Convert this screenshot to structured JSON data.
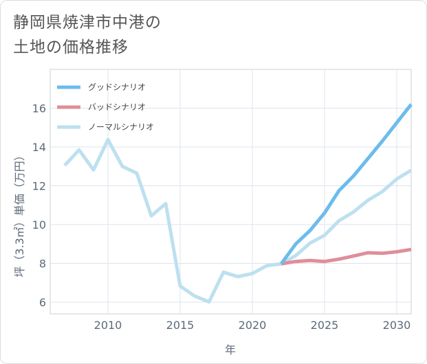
{
  "title_lines": [
    "静岡県焼津市中港の",
    "土地の価格推移"
  ],
  "chart_data": {
    "type": "line",
    "title": "静岡県焼津市中港の土地の価格推移",
    "xlabel": "年",
    "ylabel": "坪（3.3㎡）単価（万円）",
    "xlim": [
      2006,
      2031
    ],
    "ylim": [
      5.4,
      18
    ],
    "xticks": [
      2010,
      2015,
      2020,
      2025,
      2030
    ],
    "yticks": [
      6,
      8,
      10,
      12,
      14,
      16
    ],
    "grid": true,
    "legend_position": "top-left",
    "series": [
      {
        "name": "グッドシナリオ",
        "color": "#6cbcec",
        "x": [
          2022,
          2023,
          2024,
          2025,
          2026,
          2027,
          2028,
          2029,
          2030,
          2031
        ],
        "y": [
          7.98,
          9.0,
          9.7,
          10.6,
          11.75,
          12.5,
          13.4,
          14.3,
          15.25,
          16.2
        ]
      },
      {
        "name": "バッドシナリオ",
        "color": "#e08e98",
        "x": [
          2022,
          2023,
          2024,
          2025,
          2026,
          2027,
          2028,
          2029,
          2030,
          2031
        ],
        "y": [
          7.98,
          8.1,
          8.15,
          8.1,
          8.22,
          8.38,
          8.55,
          8.52,
          8.6,
          8.72
        ]
      },
      {
        "name": "ノーマルシナリオ",
        "color": "#bde0ef",
        "x": [
          2007,
          2008,
          2009,
          2010,
          2011,
          2012,
          2013,
          2014,
          2015,
          2016,
          2017,
          2018,
          2019,
          2020,
          2021,
          2022,
          2023,
          2024,
          2025,
          2026,
          2027,
          2028,
          2029,
          2030,
          2031
        ],
        "y": [
          13.05,
          13.85,
          12.82,
          14.38,
          13.0,
          12.65,
          10.45,
          11.08,
          6.83,
          6.32,
          6.02,
          7.55,
          7.32,
          7.48,
          7.88,
          7.98,
          8.4,
          9.05,
          9.45,
          10.2,
          10.65,
          11.25,
          11.7,
          12.35,
          12.8
        ]
      }
    ]
  }
}
